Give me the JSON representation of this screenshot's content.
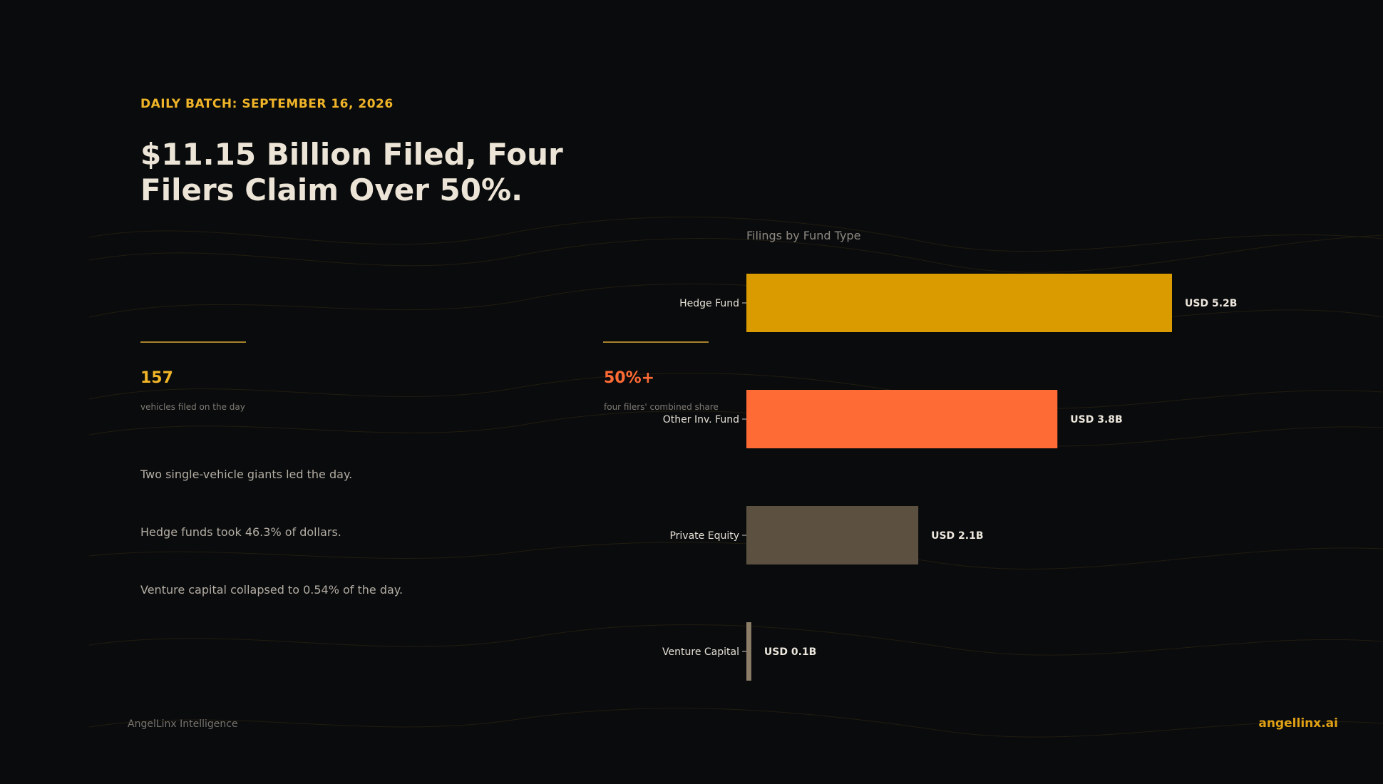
{
  "header": {
    "eyebrow": "DAILY BATCH: SEPTEMBER 16, 2026",
    "headline": "$11.15 Billion Filed, Four Filers Claim Over 50%."
  },
  "stats": [
    {
      "value": "157",
      "label": "vehicles filed on the day",
      "color": "#f0b428"
    },
    {
      "value": "50%+",
      "label": "four filers' combined share",
      "color": "#ff6b35"
    }
  ],
  "bullets": [
    "Two single-vehicle giants led the day.",
    "Hedge funds took 46.3% of dollars.",
    "Venture capital collapsed to 0.54% of the day."
  ],
  "chart_data": {
    "type": "bar",
    "orientation": "horizontal",
    "title": "Filings by Fund Type",
    "categories": [
      "Hedge Fund",
      "Other Inv. Fund",
      "Private Equity",
      "Venture Capital"
    ],
    "values": [
      5.2,
      3.8,
      2.1,
      0.06
    ],
    "value_labels": [
      "USD 5.2B",
      "USD 3.8B",
      "USD 2.1B",
      "USD 0.1B"
    ],
    "colors": [
      "#d99b00",
      "#ff6b35",
      "#5c5140",
      "#8c7d68"
    ],
    "unit": "USD B",
    "xlim": [
      0,
      5.2
    ],
    "grid": false
  },
  "footer": {
    "brand": "AngelLinx Intelligence",
    "site": "angellinx.ai"
  }
}
